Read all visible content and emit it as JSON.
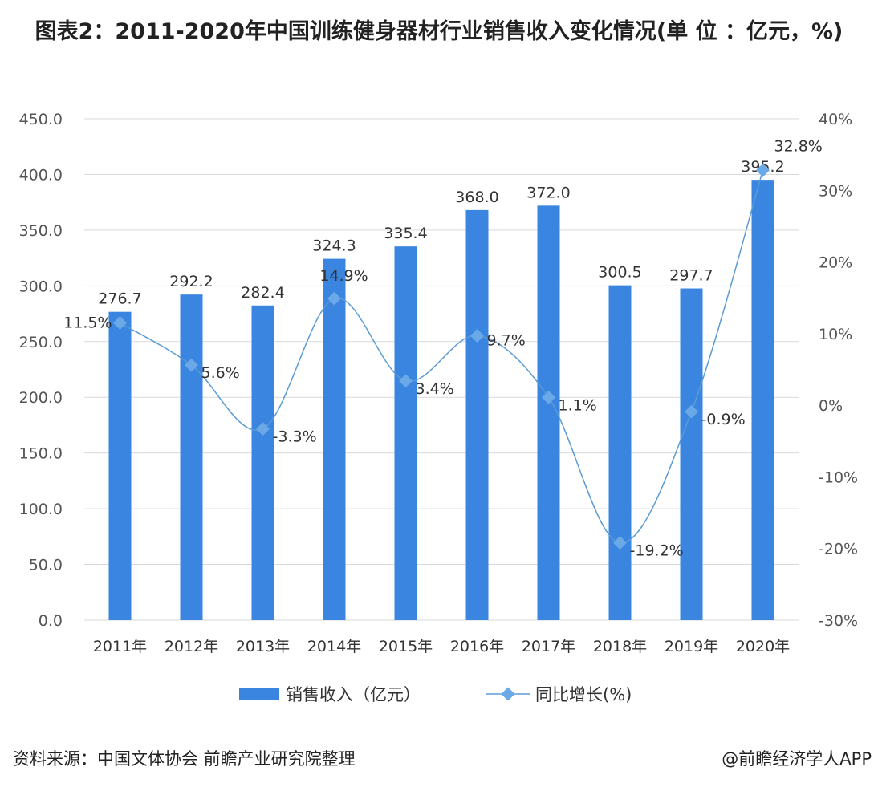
{
  "title": "图表2：2011-2020年中国训练健身器材行业销售收入变化情况(单 位 ：亿元，%)",
  "footer": {
    "source": "资料来源：中国文体协会 前瞻产业研究院整理",
    "credit": "@前瞻经济学人APP"
  },
  "colors": {
    "bar": "#3a85e0",
    "line": "#5b9bd5",
    "marker": "#6aa8e8",
    "grid": "#d9d9d9"
  },
  "chart_data": {
    "type": "bar+line",
    "categories": [
      "2011年",
      "2012年",
      "2013年",
      "2014年",
      "2015年",
      "2016年",
      "2017年",
      "2018年",
      "2019年",
      "2020年"
    ],
    "series": [
      {
        "name": "销售收入（亿元）",
        "type": "bar",
        "axis": "left",
        "values": [
          276.7,
          292.2,
          282.4,
          324.3,
          335.4,
          368.0,
          372.0,
          300.5,
          297.7,
          395.2
        ],
        "labels": [
          "276.7",
          "292.2",
          "282.4",
          "324.3",
          "335.4",
          "368.0",
          "372.0",
          "300.5",
          "297.7",
          "395.2"
        ]
      },
      {
        "name": "同比增长(%)",
        "type": "line",
        "axis": "right",
        "values": [
          11.5,
          5.6,
          -3.3,
          14.9,
          3.4,
          9.7,
          1.1,
          -19.2,
          -0.9,
          32.8
        ],
        "labels": [
          "11.5%",
          "5.6%",
          "-3.3%",
          "14.9%",
          "3.4%",
          "9.7%",
          "1.1%",
          "-19.2%",
          "-0.9%",
          "32.8%"
        ]
      }
    ],
    "y_left": {
      "range": [
        0,
        450
      ],
      "ticks": [
        "0.0",
        "50.0",
        "100.0",
        "150.0",
        "200.0",
        "250.0",
        "300.0",
        "350.0",
        "400.0",
        "450.0"
      ]
    },
    "y_right": {
      "range": [
        -30,
        40
      ],
      "ticks": [
        "-30%",
        "-20%",
        "-10%",
        "0%",
        "10%",
        "20%",
        "30%",
        "40%"
      ]
    },
    "grid": true,
    "legend_position": "bottom"
  }
}
